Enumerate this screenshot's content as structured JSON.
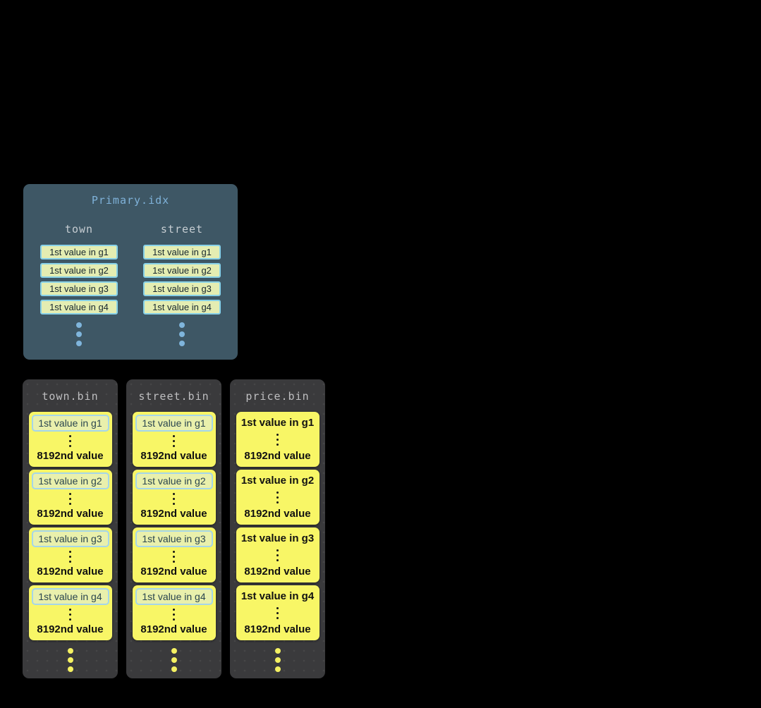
{
  "primary": {
    "title": "Primary.idx",
    "columns": [
      {
        "header": "town",
        "cells": [
          "1st value in g1",
          "1st value in g2",
          "1st value in g3",
          "1st value in g4"
        ]
      },
      {
        "header": "street",
        "cells": [
          "1st value in g1",
          "1st value in g2",
          "1st value in g3",
          "1st value in g4"
        ]
      }
    ],
    "ellipsis_dots": 3
  },
  "bins": [
    {
      "title": "town.bin",
      "highlighted_first_value": true,
      "cards": [
        {
          "first": "1st value in g1",
          "last": "8192nd value"
        },
        {
          "first": "1st value in g2",
          "last": "8192nd value"
        },
        {
          "first": "1st value in g3",
          "last": "8192nd value"
        },
        {
          "first": "1st value in g4",
          "last": "8192nd value"
        }
      ],
      "ellipsis_dots": 3
    },
    {
      "title": "street.bin",
      "highlighted_first_value": true,
      "cards": [
        {
          "first": "1st value in g1",
          "last": "8192nd value"
        },
        {
          "first": "1st value in g2",
          "last": "8192nd value"
        },
        {
          "first": "1st value in g3",
          "last": "8192nd value"
        },
        {
          "first": "1st value in g4",
          "last": "8192nd value"
        }
      ],
      "ellipsis_dots": 3
    },
    {
      "title": "price.bin",
      "highlighted_first_value": false,
      "cards": [
        {
          "first": "1st value in g1",
          "last": "8192nd value"
        },
        {
          "first": "1st value in g2",
          "last": "8192nd value"
        },
        {
          "first": "1st value in g3",
          "last": "8192nd value"
        },
        {
          "first": "1st value in g4",
          "last": "8192nd value"
        }
      ],
      "ellipsis_dots": 3
    }
  ],
  "colors": {
    "background": "#000000",
    "primary_panel": "#3e5765",
    "primary_title": "#7fb2d9",
    "column_header": "#c6cdd2",
    "cell_bg": "#e4edb2",
    "cell_border": "#87d1e8",
    "cell_text": "#16262e",
    "primary_dots": "#7fb5dc",
    "bin_panel": "#3a3a3c",
    "bin_title": "#bfbfc1",
    "card_bg": "#f8f666",
    "card_text": "#111111",
    "chip_bg": "#e9f0ac",
    "chip_border": "#a5d6e8",
    "chip_text": "#2a454f",
    "bin_dots": "#f4f162"
  }
}
